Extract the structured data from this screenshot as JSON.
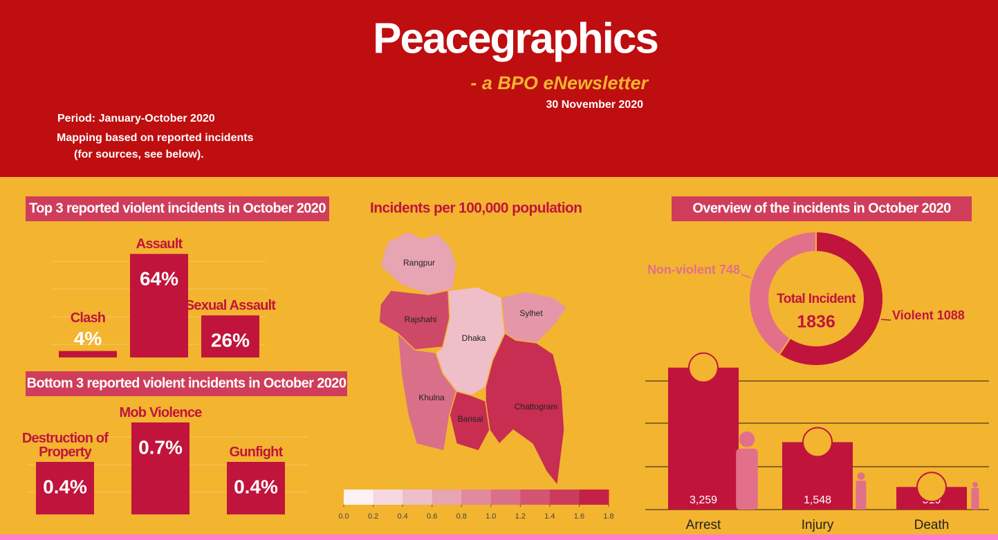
{
  "header": {
    "title": "Peacegraphics",
    "subtitle": "- a BPO eNewsletter",
    "date": "30 November 2020",
    "period": "Period: January-October 2020",
    "note_lines": [
      "Mapping based on reported incidents",
      "(for sources, see below)."
    ]
  },
  "chart_data": [
    {
      "type": "bar",
      "title": "Top 3 reported violent incidents in October 2020",
      "categories": [
        "Clash",
        "Assault",
        "Sexual Assault"
      ],
      "values": [
        4,
        64,
        26
      ],
      "value_labels": [
        "4%",
        "64%",
        "26%"
      ],
      "color": "#c0143c"
    },
    {
      "type": "bar",
      "title": "Bottom 3 reported violent incidents in October 2020",
      "categories": [
        "Destruction of Property",
        "Mob Violence",
        "Gunfight"
      ],
      "values": [
        0.4,
        0.7,
        0.4
      ],
      "value_labels": [
        "0.4%",
        "0.7%",
        "0.4%"
      ],
      "color": "#c0143c"
    },
    {
      "type": "choropleth",
      "title": "Incidents per 100,000 population",
      "regions": [
        {
          "name": "Rangpur",
          "value": 0.7
        },
        {
          "name": "Rajshahi",
          "value": 1.4
        },
        {
          "name": "Dhaka",
          "value": 0.5
        },
        {
          "name": "Sylhet",
          "value": 0.8
        },
        {
          "name": "Khulna",
          "value": 1.1
        },
        {
          "name": "Barisal",
          "value": 1.6
        },
        {
          "name": "Chattogram",
          "value": 1.6
        }
      ],
      "clim": [
        0,
        1.8
      ],
      "color_range": [
        "#ffffff",
        "#c0143c"
      ],
      "ticks": [
        {
          "value": 0,
          "label": "0.0"
        },
        0.2,
        0.4,
        0.6,
        0.8,
        {
          "value": 1,
          "label": "1.0"
        },
        1.2,
        1.4,
        1.6,
        1.8
      ]
    },
    {
      "type": "donut",
      "title": "Overview of the incidents in October 2020",
      "categories": [
        "Non-violent",
        "Violent"
      ],
      "values": [
        748,
        1088
      ],
      "colors": [
        "#e2708a",
        "#c0143c"
      ],
      "total_label": "Total Incident",
      "total": 1836
    },
    {
      "type": "bar",
      "categories": [
        "Arrest",
        "Injury",
        "Death"
      ],
      "values": [
        3259,
        1548,
        519
      ],
      "value_labels": [
        "3,259",
        "1,548",
        "519"
      ],
      "color": "#c0143c"
    }
  ]
}
